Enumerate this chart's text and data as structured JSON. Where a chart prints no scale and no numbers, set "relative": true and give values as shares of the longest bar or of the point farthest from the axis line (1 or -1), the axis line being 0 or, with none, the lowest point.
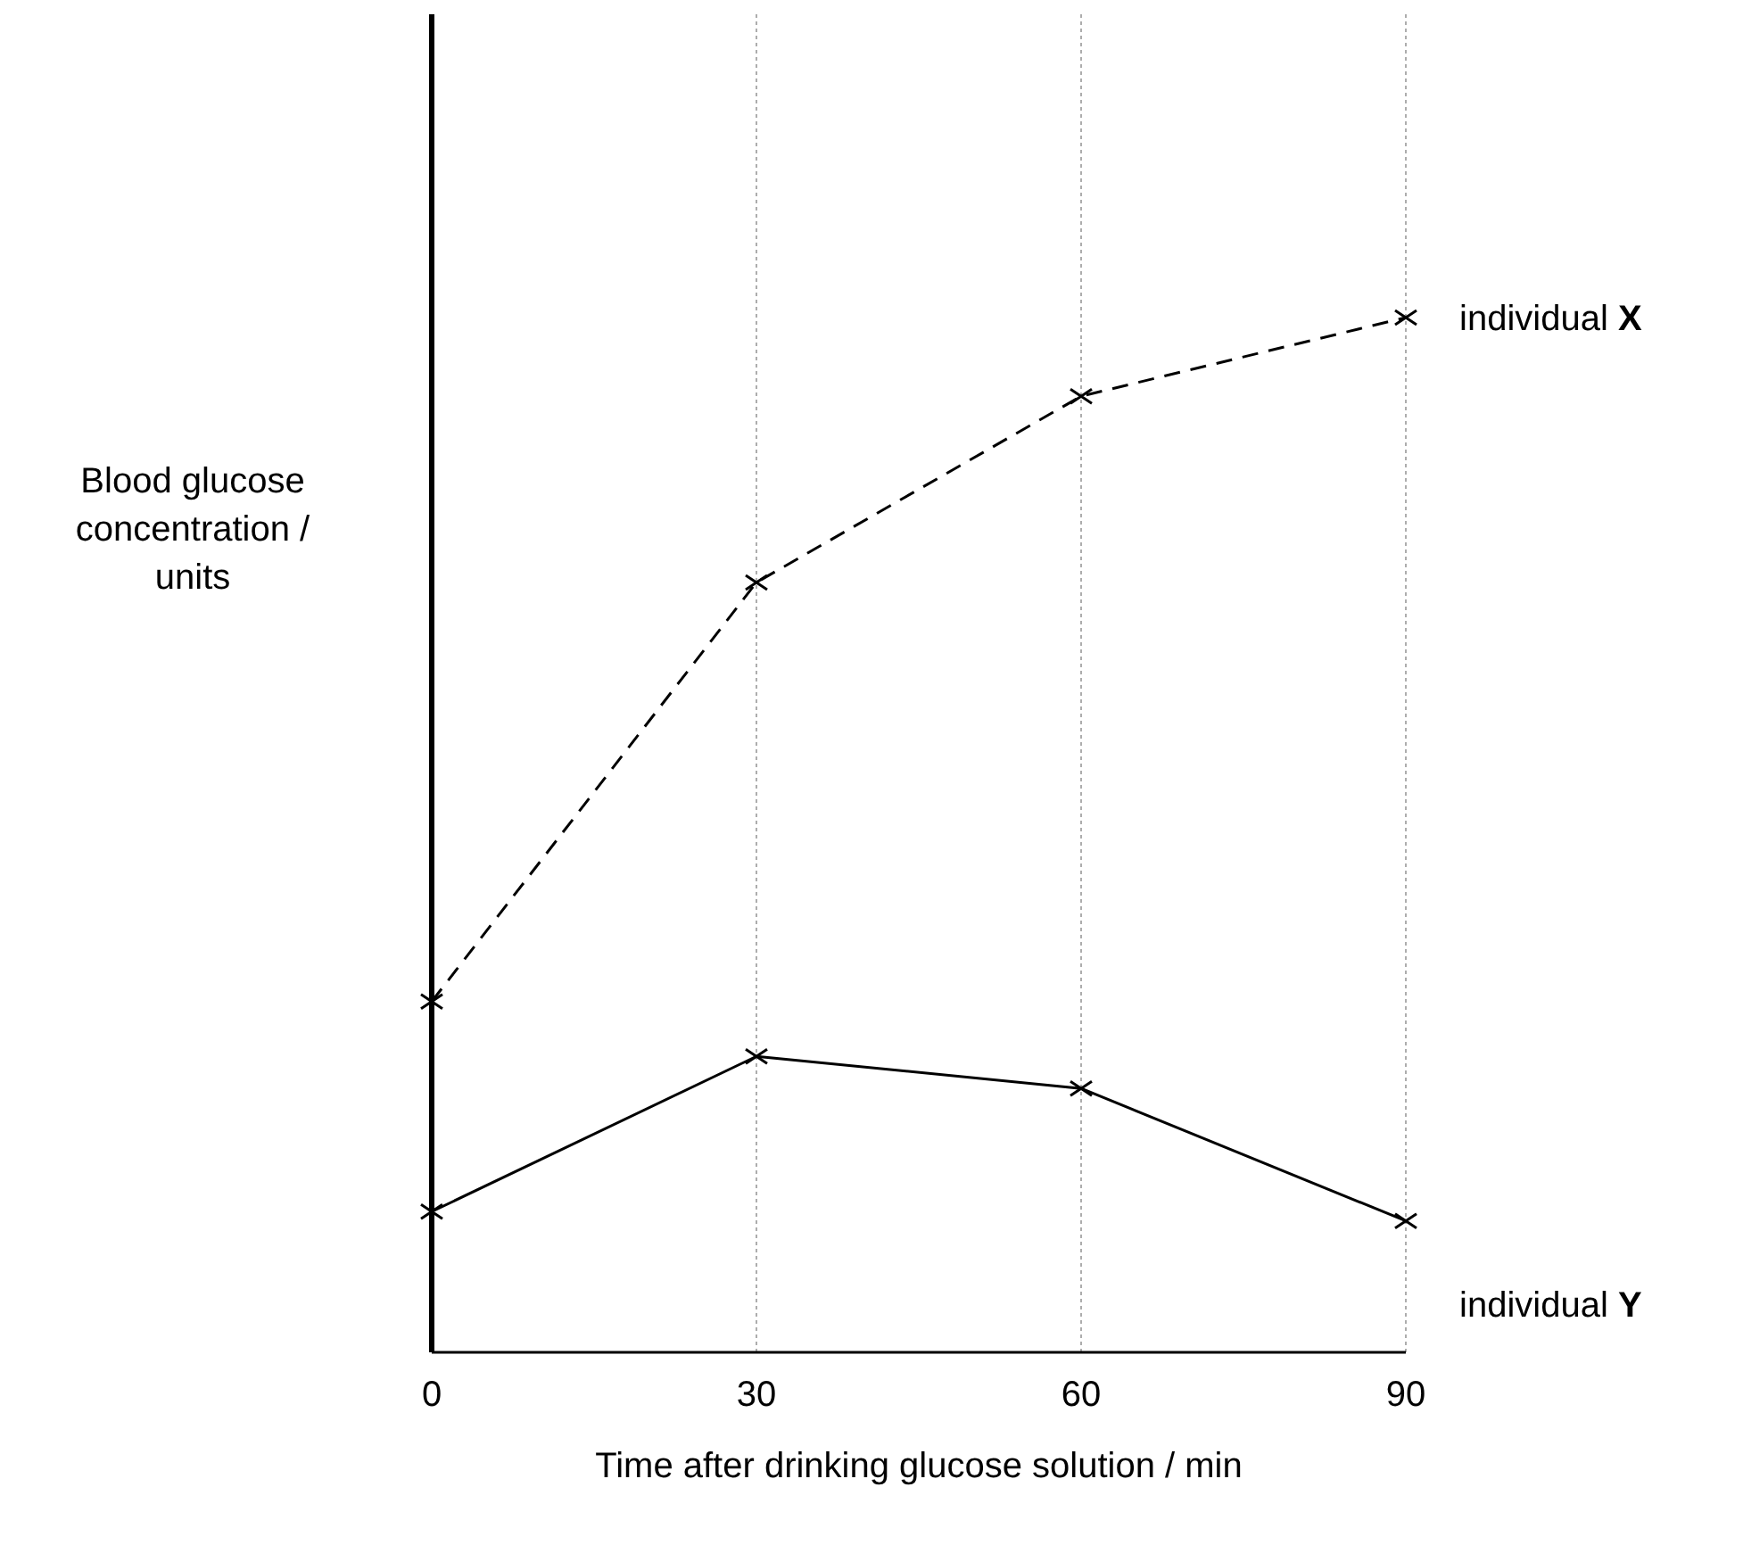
{
  "chart_data": {
    "type": "line",
    "relative": true,
    "xlabel": "Time after drinking glucose solution / min",
    "ylabel": "Blood glucose concentration / units",
    "x": [
      0,
      30,
      60,
      90
    ],
    "xlim": [
      0,
      90
    ],
    "xticks": [
      0,
      30,
      60,
      90
    ],
    "grid": "x",
    "marker": "cross",
    "series": [
      {
        "name": "individual X",
        "color": "#000000",
        "line_style": "dashed",
        "values": [
          0.339,
          0.744,
          0.924,
          1
        ]
      },
      {
        "name": "individual Y",
        "color": "#000000",
        "line_style": "solid",
        "values": [
          0.136,
          0.286,
          0.255,
          0.127
        ]
      }
    ]
  }
}
